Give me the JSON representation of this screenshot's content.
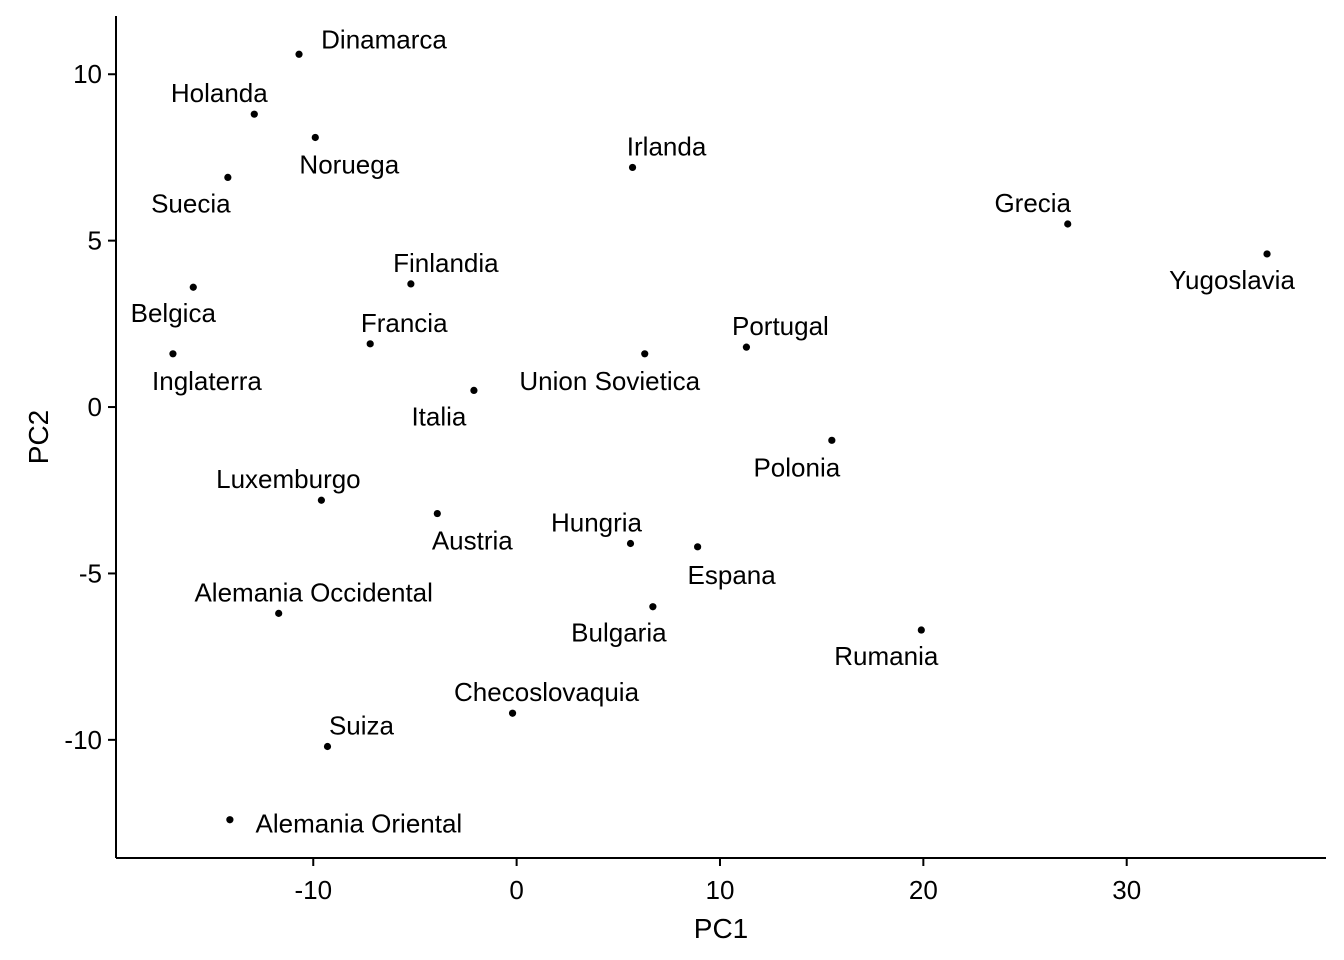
{
  "chart_data": {
    "type": "scatter",
    "xlabel": "PC1",
    "ylabel": "PC2",
    "xlim": [
      -19.7,
      39.8
    ],
    "ylim": [
      -13.55,
      11.75
    ],
    "xticks": [
      -10,
      0,
      10,
      20,
      30
    ],
    "yticks": [
      -10,
      -5,
      0,
      5,
      10
    ],
    "grid": false,
    "legend": "none",
    "points": [
      {
        "label": "Dinamarca",
        "x": -10.7,
        "y": 10.6
      },
      {
        "label": "Holanda",
        "x": -12.9,
        "y": 8.8
      },
      {
        "label": "Noruega",
        "x": -9.9,
        "y": 8.1
      },
      {
        "label": "Suecia",
        "x": -14.2,
        "y": 6.9
      },
      {
        "label": "Irlanda",
        "x": 5.7,
        "y": 7.2
      },
      {
        "label": "Grecia",
        "x": 27.1,
        "y": 5.5
      },
      {
        "label": "Yugoslavia",
        "x": 36.9,
        "y": 4.6
      },
      {
        "label": "Finlandia",
        "x": -5.2,
        "y": 3.7
      },
      {
        "label": "Belgica",
        "x": -15.9,
        "y": 3.6
      },
      {
        "label": "Francia",
        "x": -7.2,
        "y": 1.9
      },
      {
        "label": "Portugal",
        "x": 11.3,
        "y": 1.8
      },
      {
        "label": "Inglaterra",
        "x": -16.9,
        "y": 1.6
      },
      {
        "label": "Union Sovietica",
        "x": 6.3,
        "y": 1.6
      },
      {
        "label": "Italia",
        "x": -2.1,
        "y": 0.5
      },
      {
        "label": "Polonia",
        "x": 15.5,
        "y": -1.0
      },
      {
        "label": "Luxemburgo",
        "x": -9.6,
        "y": -2.8
      },
      {
        "label": "Austria",
        "x": -3.9,
        "y": -3.2
      },
      {
        "label": "Hungria",
        "x": 5.6,
        "y": -4.1
      },
      {
        "label": "Espana",
        "x": 8.9,
        "y": -4.2
      },
      {
        "label": "Bulgaria",
        "x": 6.7,
        "y": -6.0
      },
      {
        "label": "Alemania Occidental",
        "x": -11.7,
        "y": -6.2
      },
      {
        "label": "Rumania",
        "x": 19.9,
        "y": -6.7
      },
      {
        "label": "Checoslovaquia",
        "x": -0.2,
        "y": -9.2
      },
      {
        "label": "Suiza",
        "x": -9.3,
        "y": -10.2
      },
      {
        "label": "Alemania Oriental",
        "x": -14.1,
        "y": -12.4
      }
    ]
  }
}
